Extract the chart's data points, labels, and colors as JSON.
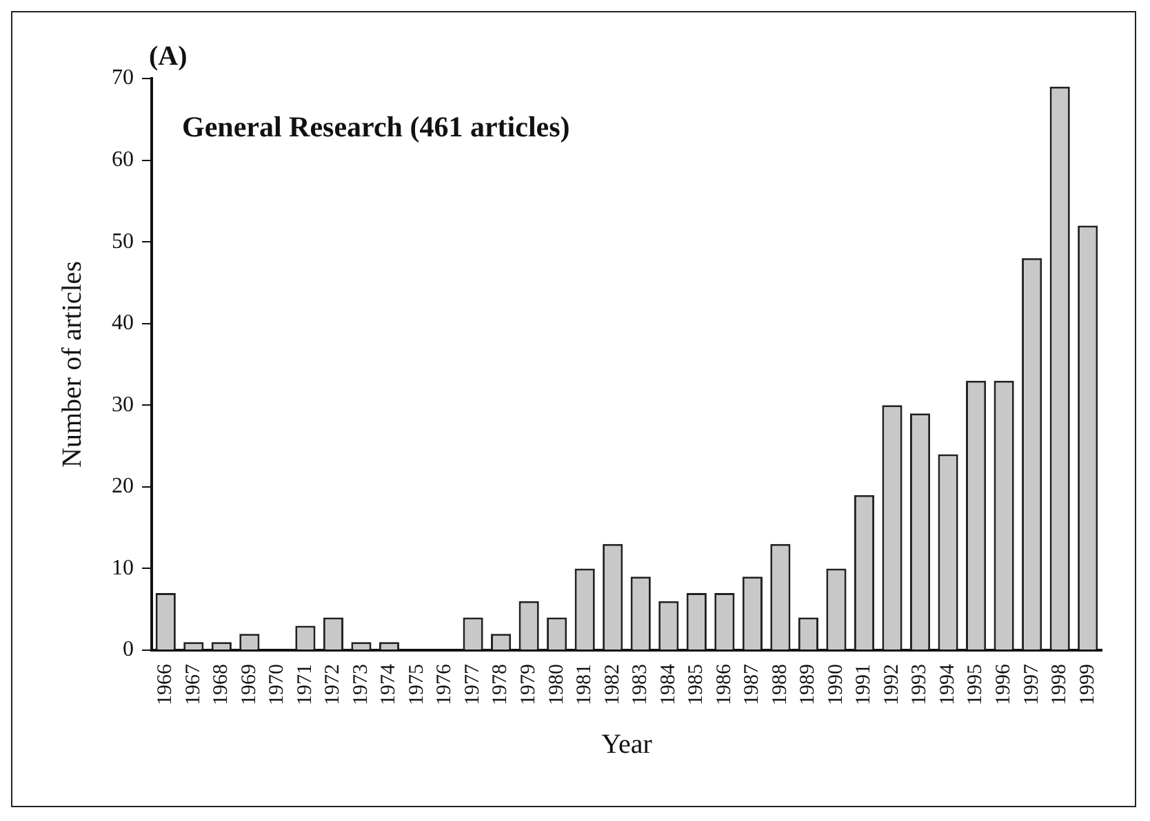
{
  "chart_data": {
    "type": "bar",
    "title": "(A)",
    "annotations": [
      "General Research (461 articles)"
    ],
    "xlabel": "Year",
    "ylabel": "Number of articles",
    "categories": [
      "1966",
      "1967",
      "1968",
      "1969",
      "1970",
      "1971",
      "1972",
      "1973",
      "1974",
      "1975",
      "1976",
      "1977",
      "1978",
      "1979",
      "1980",
      "1981",
      "1982",
      "1983",
      "1984",
      "1985",
      "1986",
      "1987",
      "1988",
      "1989",
      "1990",
      "1991",
      "1992",
      "1993",
      "1994",
      "1995",
      "1996",
      "1997",
      "1998",
      "1999"
    ],
    "values": [
      7,
      1,
      1,
      2,
      0,
      3,
      4,
      1,
      1,
      0,
      0,
      4,
      2,
      6,
      4,
      10,
      13,
      9,
      6,
      7,
      7,
      9,
      13,
      4,
      10,
      19,
      30,
      29,
      24,
      33,
      33,
      48,
      69,
      52
    ],
    "color": "#c8c8c8",
    "ylim": [
      0,
      70
    ],
    "yticks": [
      0,
      10,
      20,
      30,
      40,
      50,
      60,
      70
    ],
    "grid": false,
    "legend": false
  }
}
